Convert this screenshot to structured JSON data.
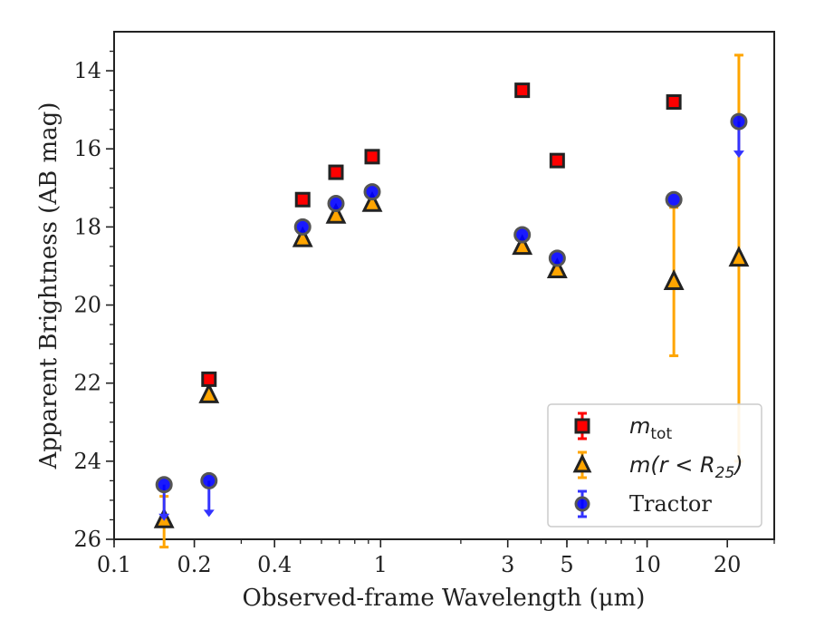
{
  "chart_data": {
    "type": "scatter",
    "xlabel": "Observed-frame Wavelength (μm)",
    "ylabel": "Apparent Brightness (AB mag)",
    "xscale": "log",
    "xlim": [
      0.1,
      30
    ],
    "ylim": [
      26,
      13
    ],
    "y_inverted": true,
    "grid": false,
    "legend_position": "lower-right",
    "x_ticks": [
      {
        "value": 0.1,
        "label": "0.1"
      },
      {
        "value": 0.2,
        "label": "0.2"
      },
      {
        "value": 0.4,
        "label": "0.4"
      },
      {
        "value": 1,
        "label": "1"
      },
      {
        "value": 3,
        "label": "3"
      },
      {
        "value": 5,
        "label": "5"
      },
      {
        "value": 10,
        "label": "10"
      },
      {
        "value": 20,
        "label": "20"
      }
    ],
    "y_ticks": [
      {
        "value": 14,
        "label": "14"
      },
      {
        "value": 16,
        "label": "16"
      },
      {
        "value": 18,
        "label": "18"
      },
      {
        "value": 20,
        "label": "20"
      },
      {
        "value": 22,
        "label": "22"
      },
      {
        "value": 24,
        "label": "24"
      },
      {
        "value": 26,
        "label": "26"
      }
    ],
    "series": [
      {
        "name": "m_tot",
        "legend_label": "m",
        "legend_subscript": "tot",
        "marker": "square",
        "fill": "#ff0000",
        "edge": "#222222",
        "errcolor": "#ff0000",
        "points": [
          {
            "x": 0.227,
            "y": 21.9
          },
          {
            "x": 0.51,
            "y": 17.3
          },
          {
            "x": 0.68,
            "y": 16.6
          },
          {
            "x": 0.93,
            "y": 16.2
          },
          {
            "x": 3.4,
            "y": 14.5
          },
          {
            "x": 4.6,
            "y": 16.3
          },
          {
            "x": 12.6,
            "y": 14.8
          }
        ]
      },
      {
        "name": "m(r<R_25)",
        "legend_label": "m(r < R",
        "legend_subscript": "25",
        "legend_suffix": ")",
        "marker": "triangle",
        "fill": "#ffa500",
        "edge": "#222222",
        "errcolor": "#ffa500",
        "points": [
          {
            "x": 0.154,
            "y": 25.5,
            "err_low": 24.9,
            "err_high": 26.2
          },
          {
            "x": 0.227,
            "y": 22.3
          },
          {
            "x": 0.51,
            "y": 18.3
          },
          {
            "x": 0.68,
            "y": 17.7
          },
          {
            "x": 0.93,
            "y": 17.4
          },
          {
            "x": 3.4,
            "y": 18.5
          },
          {
            "x": 4.6,
            "y": 19.1
          },
          {
            "x": 12.6,
            "y": 19.4,
            "err_low": 17.5,
            "err_high": 21.3
          },
          {
            "x": 22.1,
            "y": 18.8,
            "err_low": 13.6,
            "err_high": 24.0
          }
        ]
      },
      {
        "name": "Tractor",
        "legend_label": "Tractor",
        "marker": "circle",
        "fill": "#0000ff",
        "edge": "#555555",
        "errcolor": "#3333ff",
        "points": [
          {
            "x": 0.154,
            "y": 24.6,
            "upper_limit": true
          },
          {
            "x": 0.227,
            "y": 24.5,
            "upper_limit": true
          },
          {
            "x": 0.51,
            "y": 18.0
          },
          {
            "x": 0.68,
            "y": 17.4
          },
          {
            "x": 0.93,
            "y": 17.1
          },
          {
            "x": 3.4,
            "y": 18.2
          },
          {
            "x": 4.6,
            "y": 18.8
          },
          {
            "x": 12.6,
            "y": 17.3
          },
          {
            "x": 22.1,
            "y": 15.3,
            "upper_limit": true
          }
        ]
      }
    ]
  }
}
